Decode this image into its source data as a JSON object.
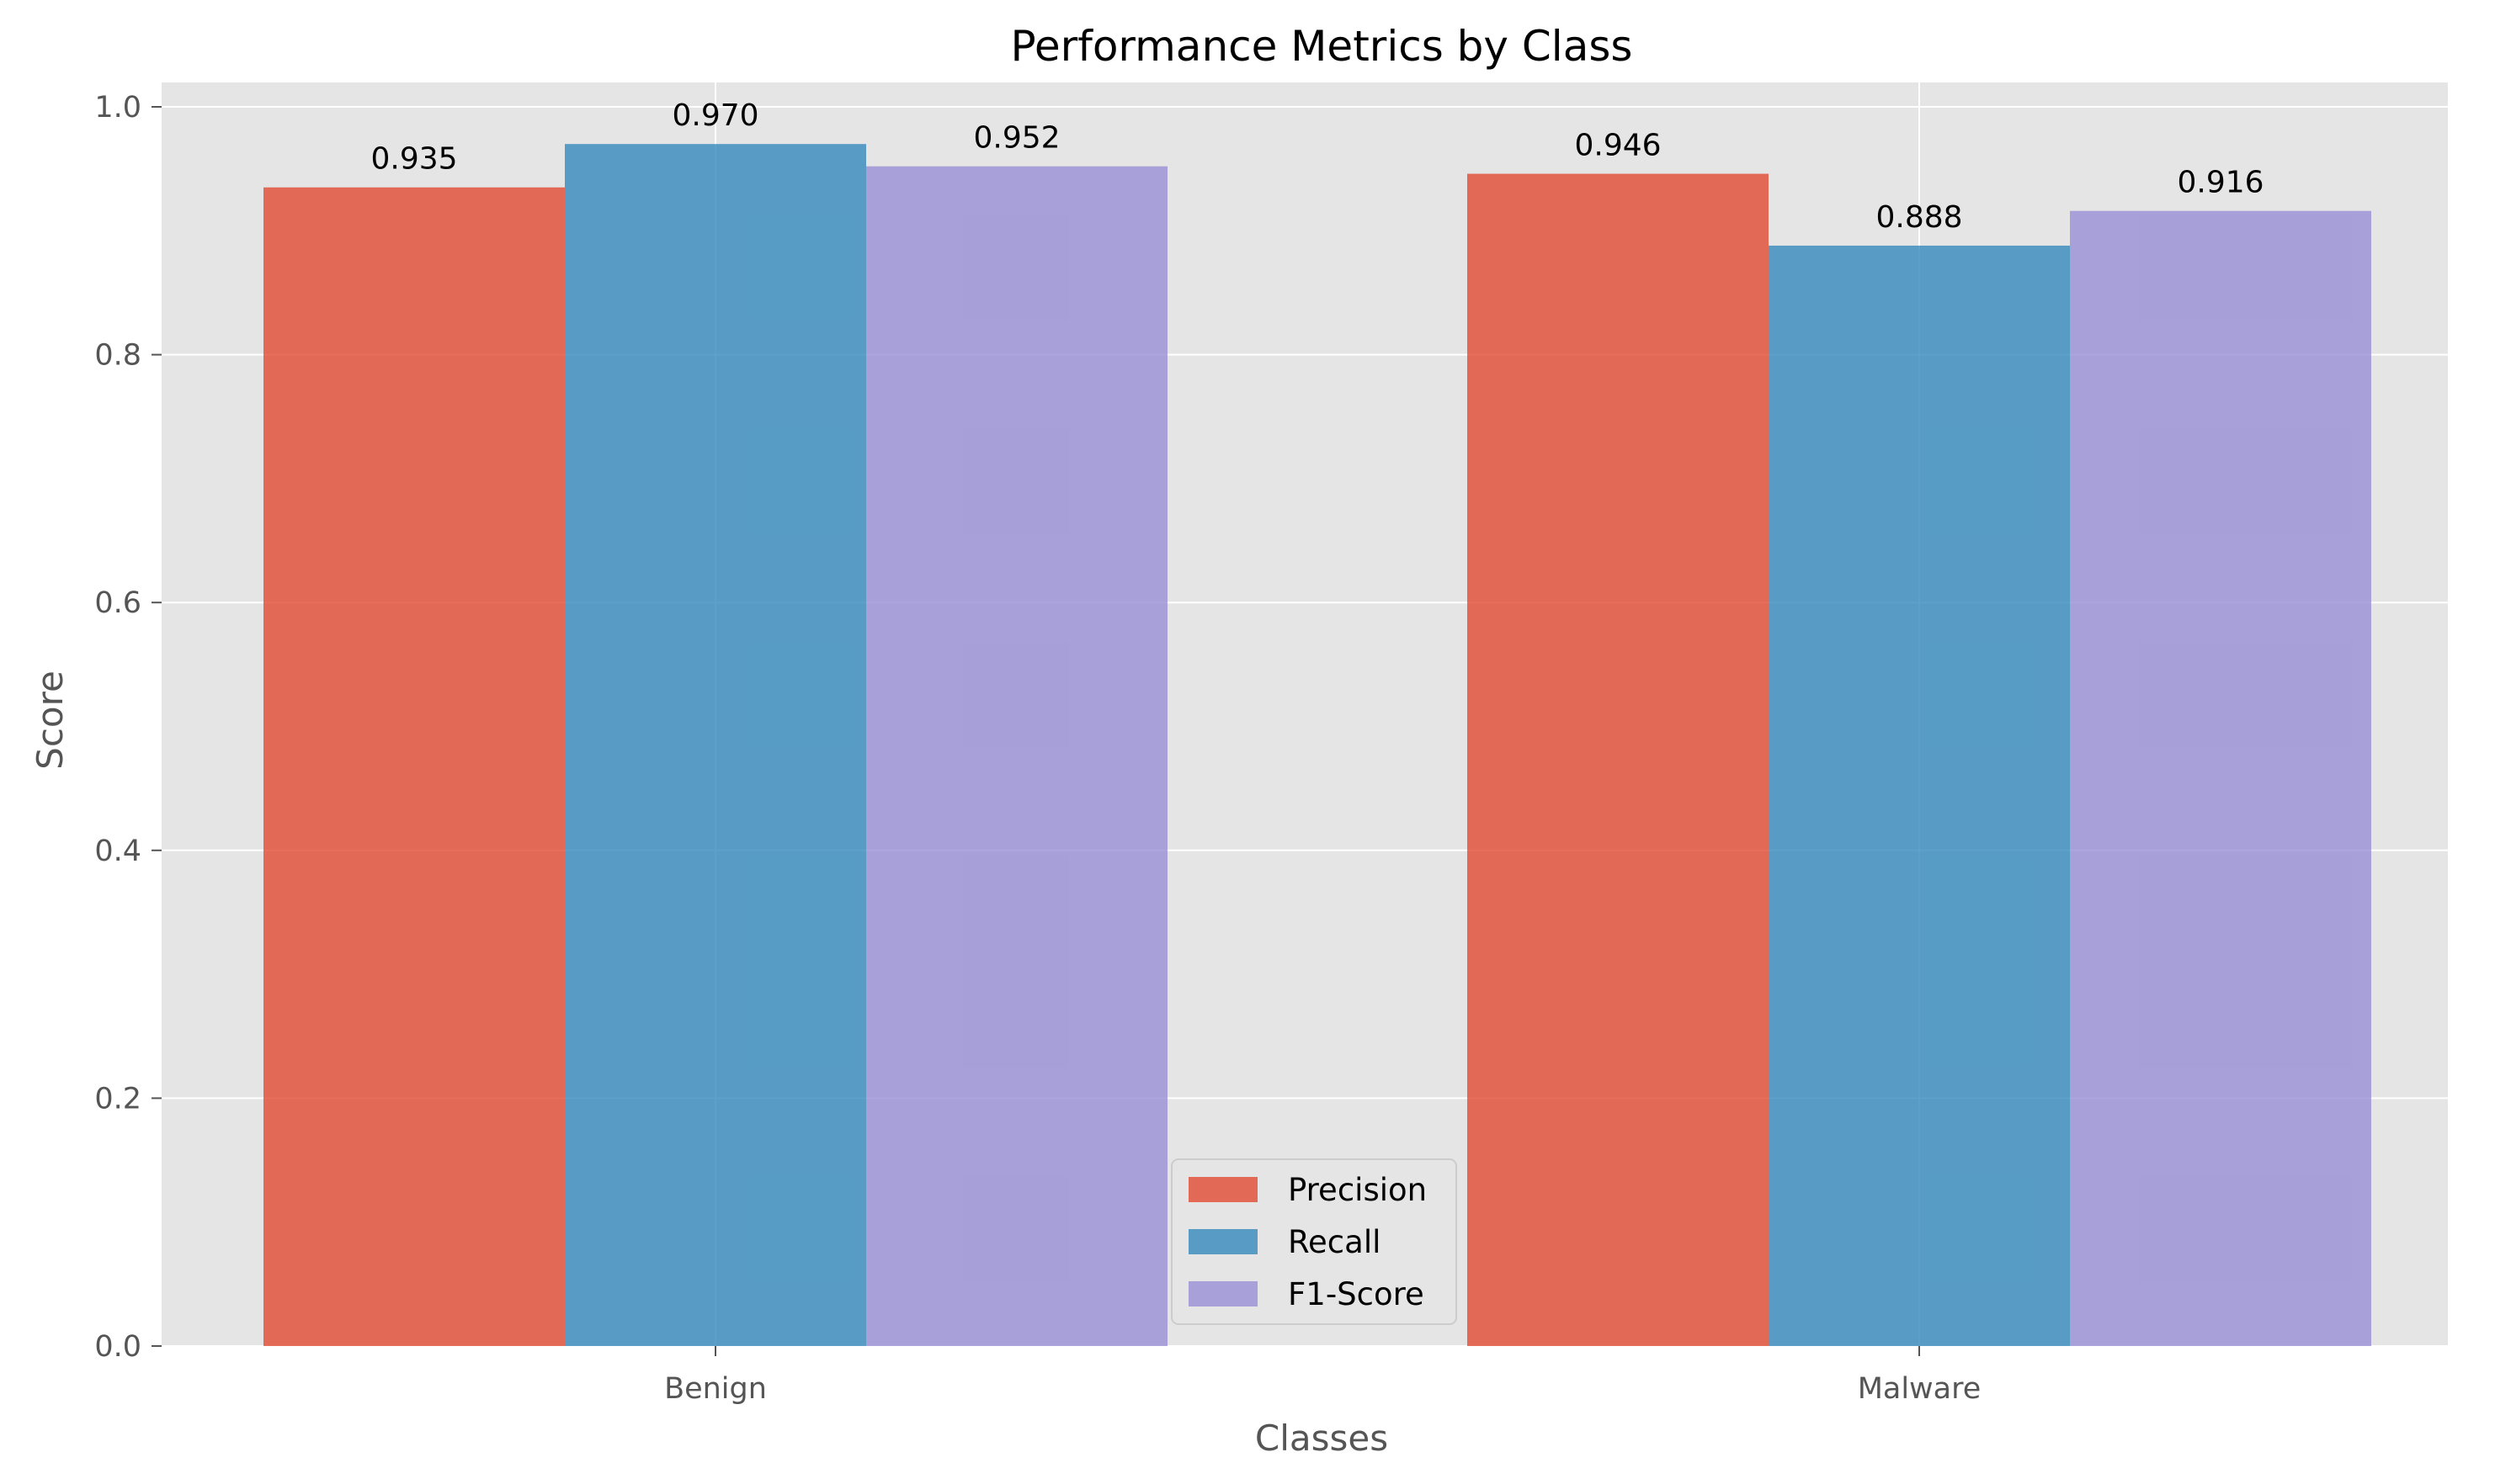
{
  "chart_data": {
    "type": "bar",
    "title": "Performance Metrics by Class",
    "xlabel": "Classes",
    "ylabel": "Score",
    "categories": [
      "Benign",
      "Malware"
    ],
    "series": [
      {
        "name": "Precision",
        "values": [
          0.935,
          0.946
        ],
        "labels": [
          "0.935",
          "0.946"
        ],
        "color": "#E24A33"
      },
      {
        "name": "Recall",
        "values": [
          0.97,
          0.888
        ],
        "labels": [
          "0.970",
          "0.888"
        ],
        "color": "#348ABD"
      },
      {
        "name": "F1-Score",
        "values": [
          0.952,
          0.916
        ],
        "labels": [
          "0.952",
          "0.916"
        ],
        "color": "#988ED5"
      }
    ],
    "ylim": [
      0,
      1.02
    ],
    "yticks": [
      "0.0",
      "0.2",
      "0.4",
      "0.6",
      "0.8",
      "1.0"
    ],
    "grid": true,
    "legend_position": "lower-center",
    "background_color": "#E5E5E5"
  }
}
